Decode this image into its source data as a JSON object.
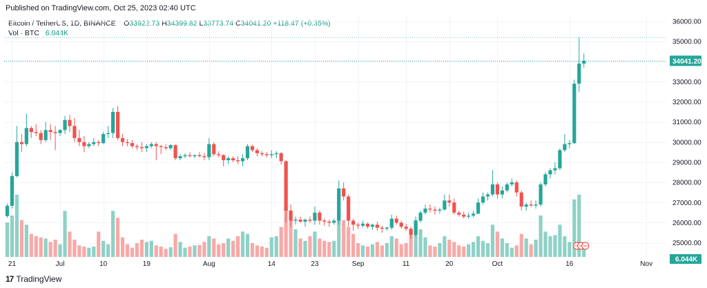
{
  "header": {
    "published": "Published on TradingView.com, Oct 25, 2023 02:40 UTC"
  },
  "legend": {
    "symbol": "Bitcoin / TetherUS, 1D, BINANCE",
    "o_label": "O",
    "o_value": "33922.73",
    "h_label": "H",
    "h_value": "34399.82",
    "l_label": "L",
    "l_value": "33773.74",
    "c_label": "C",
    "c_value": "34041.20",
    "change": "+118.47 (+0.35%)",
    "vol_label": "Vol · BTC",
    "vol_value": "6.044K"
  },
  "footer": {
    "brand": "TradingView"
  },
  "colors": {
    "up": "#26a69a",
    "down": "#ef5350",
    "vol_up": "#8fd1c6",
    "vol_down": "#f7a9a7",
    "grid": "#f0f3fa",
    "price_line": "#26a69a"
  },
  "chart_data": {
    "type": "candlestick",
    "symbol": "Bitcoin / TetherUS",
    "interval": "1D",
    "exchange": "BINANCE",
    "y_axis": {
      "range": [
        24300,
        36300
      ],
      "ticks": [
        "36000.00",
        "35000.00",
        "34000.00",
        "33000.00",
        "32000.00",
        "31000.00",
        "30000.00",
        "29000.00",
        "28000.00",
        "27000.00",
        "26000.00",
        "25000.00"
      ]
    },
    "x_axis": {
      "ticks": [
        {
          "label": "21",
          "index": 1
        },
        {
          "label": "Jul",
          "index": 11
        },
        {
          "label": "10",
          "index": 20
        },
        {
          "label": "19",
          "index": 29
        },
        {
          "label": "Aug",
          "index": 42
        },
        {
          "label": "14",
          "index": 55
        },
        {
          "label": "23",
          "index": 64
        },
        {
          "label": "Sep",
          "index": 73
        },
        {
          "label": "11",
          "index": 83
        },
        {
          "label": "20",
          "index": 92
        },
        {
          "label": "Oct",
          "index": 102
        },
        {
          "label": "16",
          "index": 117
        },
        {
          "label": "Nov",
          "index": 133
        }
      ]
    },
    "last_price_label": "34041.20",
    "last_price": 34041.2,
    "last_volume_label": "6.044K",
    "volume_max": 27000,
    "ohlcv": [
      [
        26330,
        26950,
        26250,
        26840,
        15000
      ],
      [
        26840,
        28500,
        26700,
        28310,
        18000
      ],
      [
        28310,
        30800,
        28250,
        30000,
        27000
      ],
      [
        30000,
        30400,
        29500,
        29900,
        16000
      ],
      [
        29900,
        31400,
        29800,
        30700,
        14000
      ],
      [
        30700,
        30800,
        30200,
        30500,
        10000
      ],
      [
        30500,
        30900,
        30300,
        30450,
        9000
      ],
      [
        30450,
        30600,
        29900,
        30100,
        8500
      ],
      [
        30100,
        31000,
        30000,
        30600,
        8000
      ],
      [
        30600,
        30900,
        30100,
        30500,
        6500
      ],
      [
        30500,
        30800,
        29600,
        30450,
        7500
      ],
      [
        30450,
        30650,
        30300,
        30600,
        5500
      ],
      [
        30600,
        31300,
        30400,
        31100,
        20000
      ],
      [
        31100,
        31350,
        30500,
        30800,
        11000
      ],
      [
        30800,
        31200,
        30000,
        30200,
        7500
      ],
      [
        30200,
        30600,
        29800,
        30000,
        5000
      ],
      [
        30000,
        30300,
        29500,
        29800,
        4500
      ],
      [
        29800,
        30000,
        29700,
        29900,
        4000
      ],
      [
        29900,
        30200,
        29800,
        30000,
        4500
      ],
      [
        30000,
        30100,
        29800,
        29950,
        11000
      ],
      [
        29950,
        30500,
        29900,
        30400,
        7000
      ],
      [
        30400,
        30800,
        30200,
        30450,
        5500
      ],
      [
        30450,
        31700,
        30200,
        31500,
        20000
      ],
      [
        31500,
        31800,
        30100,
        30200,
        17000
      ],
      [
        30200,
        30400,
        29800,
        30000,
        8500
      ],
      [
        30000,
        30150,
        29800,
        29950,
        5500
      ],
      [
        29950,
        30100,
        29700,
        29800,
        4000
      ],
      [
        29800,
        29900,
        29600,
        29750,
        6000
      ],
      [
        29750,
        30000,
        29500,
        29700,
        7500
      ],
      [
        29700,
        29900,
        29500,
        29800,
        6500
      ],
      [
        29800,
        30000,
        29700,
        29900,
        7000
      ],
      [
        29900,
        30000,
        29100,
        29800,
        5000
      ],
      [
        29800,
        29850,
        29400,
        29750,
        4500
      ],
      [
        29750,
        29900,
        29600,
        29700,
        3500
      ],
      [
        29700,
        29900,
        29600,
        29850,
        4200
      ],
      [
        29850,
        29900,
        29100,
        29200,
        10000
      ],
      [
        29200,
        29400,
        29100,
        29300,
        6500
      ],
      [
        29300,
        29450,
        29200,
        29350,
        4000
      ],
      [
        29350,
        29500,
        29250,
        29300,
        4500
      ],
      [
        29300,
        29400,
        29200,
        29350,
        5000
      ],
      [
        29350,
        29500,
        29250,
        29300,
        5200
      ],
      [
        29300,
        29450,
        29100,
        29250,
        6500
      ],
      [
        29250,
        30200,
        29100,
        29900,
        9000
      ],
      [
        29900,
        30000,
        29300,
        29400,
        8000
      ],
      [
        29400,
        29550,
        29250,
        29350,
        5500
      ],
      [
        29350,
        29400,
        28800,
        29100,
        6000
      ],
      [
        29100,
        29300,
        28900,
        29200,
        8000
      ],
      [
        29200,
        29300,
        29000,
        29100,
        7000
      ],
      [
        29100,
        29300,
        28900,
        29050,
        9000
      ],
      [
        29050,
        29400,
        28800,
        29200,
        11000
      ],
      [
        29200,
        29900,
        29100,
        29800,
        10000
      ],
      [
        29800,
        29850,
        29500,
        29600,
        6000
      ],
      [
        29600,
        29700,
        29300,
        29450,
        5000
      ],
      [
        29450,
        29550,
        29300,
        29400,
        4500
      ],
      [
        29400,
        29500,
        29250,
        29350,
        4000
      ],
      [
        29350,
        29600,
        29200,
        29400,
        8500
      ],
      [
        29400,
        29550,
        29200,
        29450,
        9000
      ],
      [
        29450,
        29500,
        28900,
        29050,
        13000
      ],
      [
        29050,
        29100,
        26000,
        26600,
        22000
      ],
      [
        26600,
        26900,
        25800,
        26100,
        18000
      ],
      [
        26100,
        26300,
        25900,
        26150,
        12000
      ],
      [
        26150,
        26300,
        26000,
        26050,
        8000
      ],
      [
        26050,
        26200,
        25800,
        26150,
        7000
      ],
      [
        26150,
        26300,
        26000,
        26100,
        9000
      ],
      [
        26100,
        26800,
        25900,
        26500,
        11000
      ],
      [
        26500,
        26600,
        25900,
        26100,
        8000
      ],
      [
        26100,
        26200,
        25850,
        26050,
        7000
      ],
      [
        26050,
        26150,
        25800,
        26000,
        6500
      ],
      [
        26000,
        26200,
        25900,
        26100,
        7000
      ],
      [
        26100,
        28100,
        25900,
        27700,
        20000
      ],
      [
        27700,
        28000,
        27100,
        27300,
        16000
      ],
      [
        27300,
        27400,
        25800,
        26100,
        13000
      ],
      [
        26100,
        26200,
        25600,
        25900,
        10000
      ],
      [
        25900,
        26000,
        25700,
        25850,
        6000
      ],
      [
        25850,
        26100,
        25750,
        25950,
        5000
      ],
      [
        25950,
        26000,
        25700,
        25800,
        4500
      ],
      [
        25800,
        25950,
        25650,
        25900,
        5500
      ],
      [
        25900,
        26050,
        25600,
        25750,
        6500
      ],
      [
        25750,
        25850,
        25500,
        25700,
        5000
      ],
      [
        25700,
        25800,
        25600,
        25750,
        6000
      ],
      [
        25750,
        26400,
        25650,
        26200,
        9000
      ],
      [
        26200,
        26350,
        25900,
        26000,
        8000
      ],
      [
        26000,
        26100,
        25700,
        25800,
        5500
      ],
      [
        25800,
        25950,
        25600,
        25700,
        6000
      ],
      [
        25700,
        25800,
        25200,
        25400,
        12000
      ],
      [
        25400,
        26300,
        25300,
        26100,
        16000
      ],
      [
        26100,
        26600,
        26000,
        26500,
        12000
      ],
      [
        26500,
        26900,
        26400,
        26700,
        8500
      ],
      [
        26700,
        26900,
        26500,
        26650,
        5000
      ],
      [
        26650,
        26800,
        26400,
        26600,
        4500
      ],
      [
        26600,
        26750,
        26450,
        26650,
        6000
      ],
      [
        26650,
        27400,
        26600,
        27100,
        9000
      ],
      [
        27100,
        27400,
        26800,
        27000,
        7500
      ],
      [
        27000,
        27200,
        26400,
        26500,
        6500
      ],
      [
        26500,
        26600,
        26300,
        26400,
        5000
      ],
      [
        26400,
        26550,
        26200,
        26300,
        4500
      ],
      [
        26300,
        26500,
        26200,
        26350,
        5500
      ],
      [
        26350,
        26600,
        26250,
        26450,
        6500
      ],
      [
        26450,
        27200,
        26400,
        27000,
        9000
      ],
      [
        27000,
        27500,
        26900,
        27300,
        7000
      ],
      [
        27300,
        27500,
        27100,
        27400,
        6000
      ],
      [
        27400,
        28600,
        27300,
        27900,
        14000
      ],
      [
        27900,
        28000,
        27200,
        27400,
        11000
      ],
      [
        27400,
        27800,
        27200,
        27600,
        8000
      ],
      [
        27600,
        28000,
        27500,
        27900,
        6000
      ],
      [
        27900,
        28200,
        27800,
        28000,
        4000
      ],
      [
        28000,
        28100,
        27300,
        27500,
        5000
      ],
      [
        27500,
        27600,
        26600,
        26800,
        10000
      ],
      [
        26800,
        27000,
        26600,
        26900,
        8000
      ],
      [
        26900,
        27100,
        26800,
        26850,
        5500
      ],
      [
        26850,
        27100,
        26700,
        26900,
        7500
      ],
      [
        26900,
        28000,
        26800,
        27900,
        18000
      ],
      [
        27900,
        28500,
        27800,
        28400,
        11000
      ],
      [
        28400,
        28700,
        28200,
        28600,
        9000
      ],
      [
        28600,
        29000,
        28400,
        28700,
        9500
      ],
      [
        28700,
        29700,
        28600,
        29600,
        14000
      ],
      [
        29600,
        30400,
        29500,
        29900,
        9000
      ],
      [
        29900,
        30100,
        29700,
        29950,
        6500
      ],
      [
        29950,
        33100,
        29900,
        32900,
        25000
      ],
      [
        32900,
        35200,
        32500,
        33900,
        27000
      ],
      [
        33900,
        34400,
        33700,
        34041.2,
        6044
      ]
    ]
  }
}
